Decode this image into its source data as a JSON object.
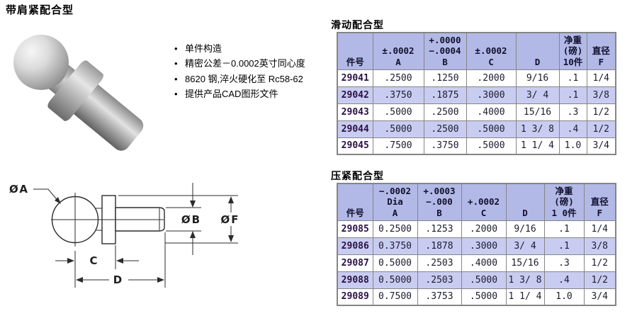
{
  "page": {
    "title": "带肩紧配合型"
  },
  "features": [
    "单件构造",
    "精密公差－0.0002英寸同心度",
    "8620 钢,淬火硬化至 Rc58-62",
    "提供产品CAD图形文件"
  ],
  "diagram": {
    "labels": {
      "dia_a": "ØA",
      "dia_b": "ØB",
      "dia_f": "ØF",
      "c": "C",
      "d": "D"
    }
  },
  "tables": [
    {
      "title": "滑动配合型",
      "headers": [
        [
          "件号"
        ],
        [
          "±.0002",
          "A"
        ],
        [
          "+.0000",
          "−.0004",
          "B"
        ],
        [
          "±.0002",
          "C"
        ],
        [
          "D"
        ],
        [
          "净重",
          "(磅)",
          "10件"
        ],
        [
          "直径",
          "F"
        ]
      ],
      "rows": [
        [
          "29041",
          ".2500",
          ".1250",
          ".2000",
          "9/16",
          ".1",
          "1/4"
        ],
        [
          "29042",
          ".3750",
          ".1875",
          ".3000",
          "3/ 4",
          ".1",
          "3/8"
        ],
        [
          "29043",
          ".5000",
          ".2500",
          ".4000",
          "15/16",
          ".3",
          "1/2"
        ],
        [
          "29044",
          ".5000",
          ".2500",
          ".5000",
          "1 3/ 8",
          ".4",
          "1/2"
        ],
        [
          "29045",
          ".7500",
          ".3750",
          ".5000",
          "1 1/ 4",
          "1.0",
          "3/4"
        ]
      ]
    },
    {
      "title": "压紧配合型",
      "headers": [
        [
          "件号"
        ],
        [
          "−.0002",
          "Dia",
          "A"
        ],
        [
          "+.0003",
          "−.000",
          "B"
        ],
        [
          "+.0002",
          "C"
        ],
        [
          "D"
        ],
        [
          "净重",
          "(磅)",
          "1 0件"
        ],
        [
          "直径",
          "F"
        ]
      ],
      "rows": [
        [
          "29085",
          "0.2500",
          ".1253",
          ".2000",
          "9/16",
          ".1",
          "1/4"
        ],
        [
          "29086",
          "0.3750",
          ".1878",
          ".3000",
          "3/ 4",
          ".1",
          "3/8"
        ],
        [
          "29087",
          "0.5000",
          ".2503",
          ".4000",
          "15/16",
          ".3",
          "1/2"
        ],
        [
          "29088",
          "0.5000",
          ".2503",
          ".5000",
          "1 3/ 8",
          ".4",
          "1/2"
        ],
        [
          "29089",
          "0.7500",
          ".3753",
          ".5000",
          "1 1/ 4",
          "1.0",
          "3/4"
        ]
      ]
    }
  ],
  "colors": {
    "header_bg": "#b3b9e6",
    "alt_row_bg": "#c9ccf1",
    "part_number": "#2a1045",
    "table_border": "#858585"
  }
}
